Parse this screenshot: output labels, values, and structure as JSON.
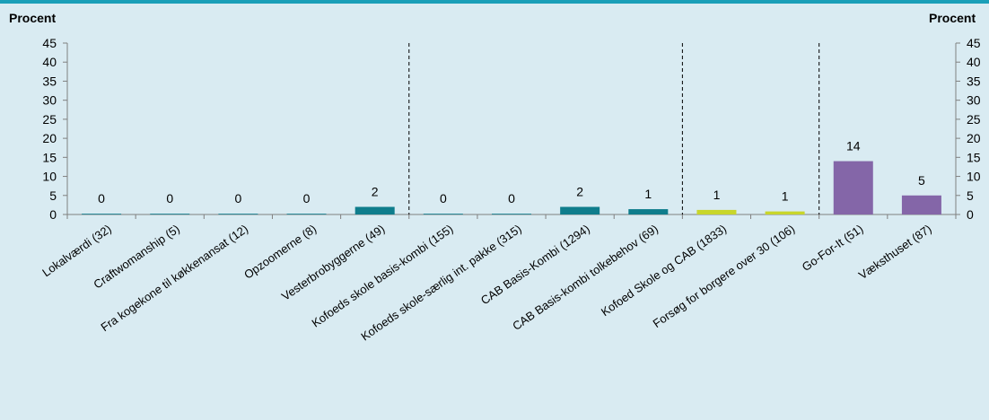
{
  "chart_data": {
    "type": "bar",
    "y_axis_left_title": "Procent",
    "y_axis_right_title": "Procent",
    "ylim": [
      0,
      45
    ],
    "yticks": [
      0,
      5,
      10,
      15,
      20,
      25,
      30,
      35,
      40,
      45
    ],
    "grid": false,
    "group_separators_after_index": [
      4,
      8,
      10
    ],
    "categories": [
      "Lokalværdi (32)",
      "Craftwomanship (5)",
      "Fra kogekone til køkkenansat (12)",
      "Opzoomerne (8)",
      "Vesterbrobyggerne (49)",
      "Kofoeds skole basis-kombi (155)",
      "Kofoeds skole-særlig int. pakke (315)",
      "CAB Basis-Kombi (1294)",
      "CAB Basis-kombi tolkebehov (69)",
      "Kofoed Skole og CAB (1833)",
      "Forsøg for borgere over 30 (106)",
      "Go-For-It (51)",
      "Væksthuset (87)"
    ],
    "values": [
      0.2,
      0.2,
      0.2,
      0.2,
      2,
      0.2,
      0.2,
      2,
      1.4,
      1.2,
      0.8,
      14,
      5
    ],
    "labels": [
      "0",
      "0",
      "0",
      "0",
      "2",
      "0",
      "0",
      "2",
      "1",
      "1",
      "1",
      "14",
      "5"
    ],
    "colors": [
      "#0f7d8c",
      "#0f7d8c",
      "#0f7d8c",
      "#0f7d8c",
      "#0f7d8c",
      "#0f7d8c",
      "#0f7d8c",
      "#0f7d8c",
      "#0f7d8c",
      "#c8d62b",
      "#c8d62b",
      "#8466a8",
      "#8466a8"
    ]
  }
}
